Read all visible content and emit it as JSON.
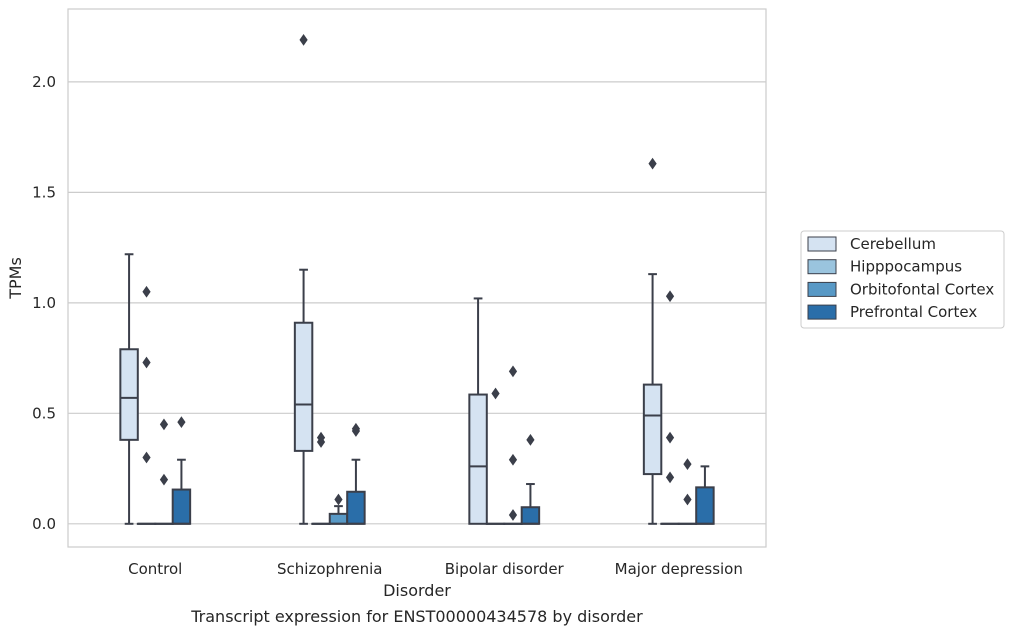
{
  "chart_data": {
    "type": "box",
    "title": "",
    "caption": "Transcript expression for ENST00000434578 by disorder",
    "xlabel": "Disorder",
    "ylabel": "TPMs",
    "ylim": [
      -0.105,
      2.33
    ],
    "yticks": [
      "0.0",
      "0.5",
      "1.0",
      "1.5",
      "2.0"
    ],
    "grid": "y",
    "legend_placement": "right-center",
    "categories": [
      "Control",
      "Schizophrenia",
      "Bipolar disorder",
      "Major depression"
    ],
    "series": [
      {
        "name": "Cerebellum",
        "color": "#d5e3f2",
        "boxes": [
          {
            "category": "Control",
            "whisker_low": 0.0,
            "q1": 0.38,
            "median": 0.57,
            "q3": 0.79,
            "whisker_high": 1.22,
            "outliers": []
          },
          {
            "category": "Schizophrenia",
            "whisker_low": 0.0,
            "q1": 0.33,
            "median": 0.54,
            "q3": 0.91,
            "whisker_high": 1.15,
            "outliers": [
              2.19
            ]
          },
          {
            "category": "Bipolar disorder",
            "whisker_low": 0.0,
            "q1": 0.0,
            "median": 0.26,
            "q3": 0.585,
            "whisker_high": 1.02,
            "outliers": []
          },
          {
            "category": "Major depression",
            "whisker_low": 0.0,
            "q1": 0.225,
            "median": 0.49,
            "q3": 0.63,
            "whisker_high": 1.13,
            "outliers": [
              1.63
            ]
          }
        ]
      },
      {
        "name": "Hipppocampus",
        "color": "#9ac4de",
        "boxes": [
          {
            "category": "Control",
            "whisker_low": 0.0,
            "q1": 0.0,
            "median": 0.0,
            "q3": 0.0,
            "whisker_high": 0.0,
            "outliers": [
              1.05,
              0.73,
              0.3
            ]
          },
          {
            "category": "Schizophrenia",
            "whisker_low": 0.0,
            "q1": 0.0,
            "median": 0.0,
            "q3": 0.0,
            "whisker_high": 0.0,
            "outliers": [
              0.39,
              0.37
            ]
          },
          {
            "category": "Bipolar disorder",
            "whisker_low": 0.0,
            "q1": 0.0,
            "median": 0.0,
            "q3": 0.0,
            "whisker_high": 0.0,
            "outliers": [
              0.59
            ]
          },
          {
            "category": "Major depression",
            "whisker_low": 0.0,
            "q1": 0.0,
            "median": 0.0,
            "q3": 0.0,
            "whisker_high": 0.0,
            "outliers": [
              1.03,
              0.39,
              0.21
            ]
          }
        ]
      },
      {
        "name": "Orbitofontal Cortex",
        "color": "#5899c6",
        "boxes": [
          {
            "category": "Control",
            "whisker_low": 0.0,
            "q1": 0.0,
            "median": 0.0,
            "q3": 0.0,
            "whisker_high": 0.0,
            "outliers": [
              0.45,
              0.2
            ]
          },
          {
            "category": "Schizophrenia",
            "whisker_low": 0.0,
            "q1": 0.0,
            "median": 0.0,
            "q3": 0.045,
            "whisker_high": 0.08,
            "outliers": [
              0.11
            ]
          },
          {
            "category": "Bipolar disorder",
            "whisker_low": 0.0,
            "q1": 0.0,
            "median": 0.0,
            "q3": 0.0,
            "whisker_high": 0.0,
            "outliers": [
              0.69,
              0.29,
              0.04
            ]
          },
          {
            "category": "Major depression",
            "whisker_low": 0.0,
            "q1": 0.0,
            "median": 0.0,
            "q3": 0.0,
            "whisker_high": 0.0,
            "outliers": [
              0.27,
              0.11
            ]
          }
        ]
      },
      {
        "name": "Prefrontal Cortex",
        "color": "#2a6ea9",
        "boxes": [
          {
            "category": "Control",
            "whisker_low": 0.0,
            "q1": 0.0,
            "median": 0.0,
            "q3": 0.155,
            "whisker_high": 0.29,
            "outliers": [
              0.46
            ]
          },
          {
            "category": "Schizophrenia",
            "whisker_low": 0.0,
            "q1": 0.0,
            "median": 0.0,
            "q3": 0.145,
            "whisker_high": 0.29,
            "outliers": [
              0.43,
              0.42
            ]
          },
          {
            "category": "Bipolar disorder",
            "whisker_low": 0.0,
            "q1": 0.0,
            "median": 0.0,
            "q3": 0.075,
            "whisker_high": 0.18,
            "outliers": [
              0.38
            ]
          },
          {
            "category": "Major depression",
            "whisker_low": 0.0,
            "q1": 0.0,
            "median": 0.0,
            "q3": 0.165,
            "whisker_high": 0.26,
            "outliers": []
          }
        ]
      }
    ]
  }
}
